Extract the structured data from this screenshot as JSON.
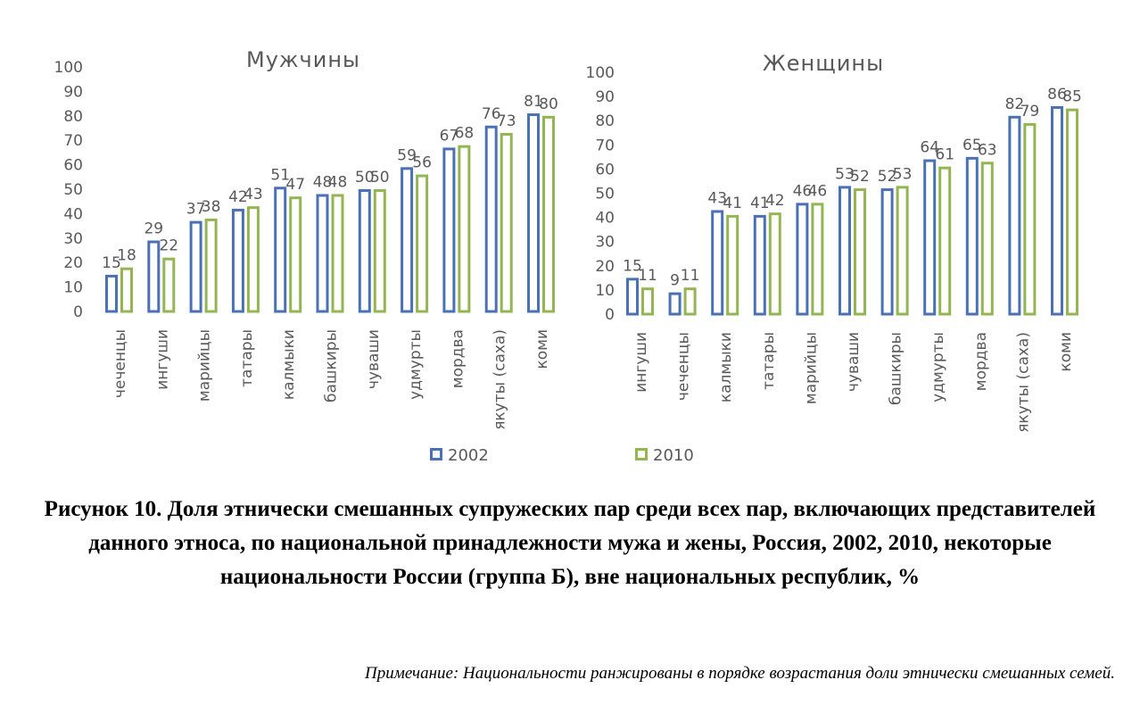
{
  "legend": {
    "series_names": [
      "2002",
      "2010"
    ]
  },
  "colors": {
    "series_2002": "#4a71b5",
    "series_2010": "#93b552",
    "axis_text": "#595959"
  },
  "chart_data": [
    {
      "type": "bar",
      "title": "Мужчины",
      "categories": [
        "чеченцы",
        "ингуши",
        "марийцы",
        "татары",
        "калмыки",
        "башкиры",
        "чуваши",
        "удмурты",
        "мордва",
        "якуты (саха)",
        "коми"
      ],
      "series": [
        {
          "name": "2002",
          "values": [
            15,
            29,
            37,
            42,
            51,
            48,
            50,
            59,
            67,
            76,
            81
          ]
        },
        {
          "name": "2010",
          "values": [
            18,
            22,
            38,
            43,
            47,
            48,
            50,
            56,
            68,
            73,
            80
          ]
        }
      ],
      "ylim": [
        0,
        100
      ],
      "yticks": [
        0,
        10,
        20,
        30,
        40,
        50,
        60,
        70,
        80,
        90,
        100
      ],
      "grid": false,
      "data_labels": true
    },
    {
      "type": "bar",
      "title": "Женщины",
      "categories": [
        "ингуши",
        "чеченцы",
        "калмыки",
        "татары",
        "марийцы",
        "чуваши",
        "башкиры",
        "удмурты",
        "мордва",
        "якуты (саха)",
        "коми"
      ],
      "series": [
        {
          "name": "2002",
          "values": [
            15,
            9,
            43,
            41,
            46,
            53,
            52,
            64,
            65,
            82,
            86
          ]
        },
        {
          "name": "2010",
          "values": [
            11,
            11,
            41,
            42,
            46,
            52,
            53,
            61,
            63,
            79,
            85
          ]
        }
      ],
      "ylim": [
        0,
        100
      ],
      "yticks": [
        0,
        10,
        20,
        30,
        40,
        50,
        60,
        70,
        80,
        90,
        100
      ],
      "grid": false,
      "data_labels": true
    }
  ],
  "caption": "Рисунок 10. Доля этнически смешанных супружеских пар среди всех пар, включающих представителей данного этноса, по национальной принадлежности мужа и жены, Россия, 2002, 2010, некоторые национальности России (группа Б), вне национальных республик, %",
  "note": "Примечание: Национальности ранжированы в порядке возрастания доли этнически смешанных семей."
}
